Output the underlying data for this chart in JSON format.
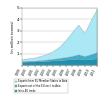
{
  "years": [
    1999,
    2000,
    2001,
    2002,
    2003,
    2004,
    2005,
    2006,
    2007,
    2008,
    2009,
    2010,
    2011
  ],
  "exports_eu_member_to_asia": [
    0.18,
    0.22,
    0.28,
    0.38,
    0.5,
    0.7,
    1.0,
    1.5,
    2.1,
    2.6,
    2.0,
    3.0,
    3.8
  ],
  "exports_out_of_eu_to_asia": [
    0.05,
    0.06,
    0.07,
    0.09,
    0.11,
    0.14,
    0.18,
    0.22,
    0.28,
    0.38,
    0.3,
    0.42,
    0.55
  ],
  "intra_eu_trade": [
    0.28,
    0.3,
    0.3,
    0.33,
    0.36,
    0.4,
    0.43,
    0.47,
    0.5,
    0.55,
    0.48,
    0.52,
    0.58
  ],
  "color_eu_member_to_asia": "#aae8f5",
  "color_out_of_eu_to_asia": "#3ab0d0",
  "color_intra_eu": "#2090b0",
  "ylabel": "(in million tonnes)",
  "ylim": [
    0,
    5
  ],
  "yticks": [
    1,
    2,
    3,
    4,
    5
  ],
  "legend_labels": [
    "Exports from EU Member States to Asia",
    "Exports out of the EU excl. to Asia",
    "Intra-EU trade"
  ],
  "background_color": "#ffffff",
  "grid_color": "#bbbbbb"
}
